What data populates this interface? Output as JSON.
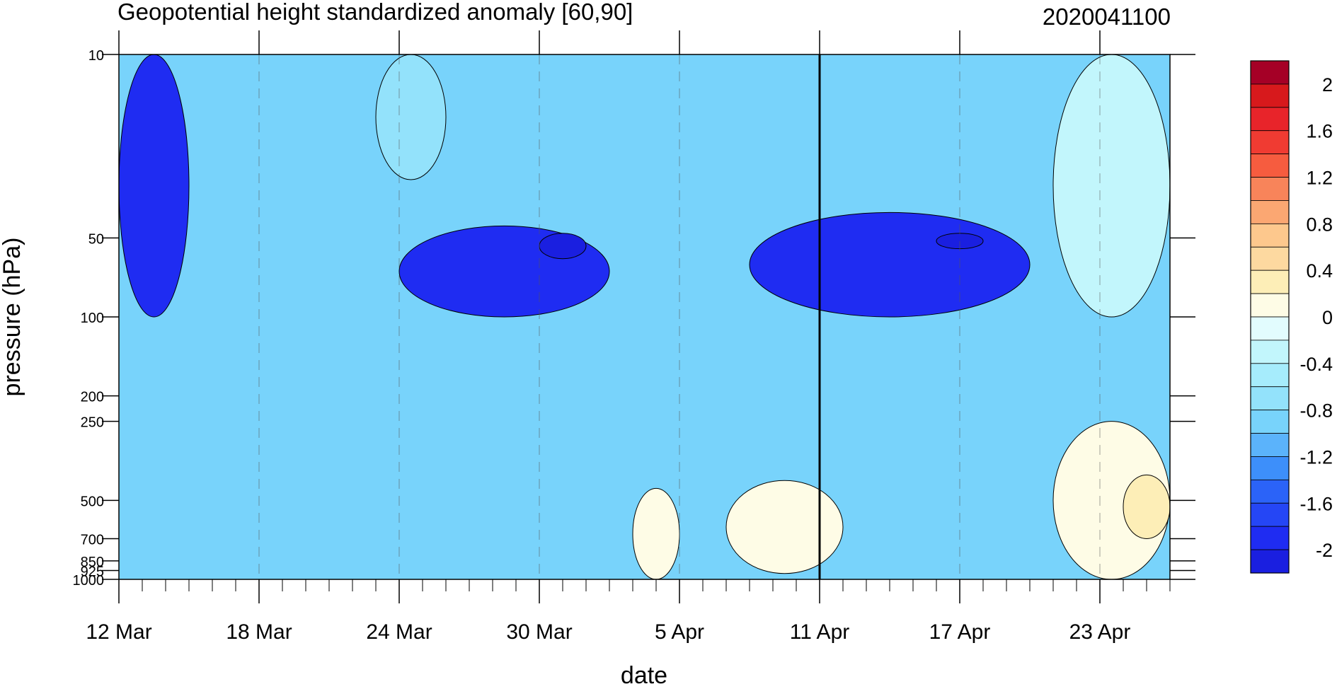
{
  "chart_data": {
    "type": "heatmap",
    "title": "Geopotential height standardized anomaly [60,90]",
    "subtitle": "2020041100",
    "xlabel": "date",
    "ylabel": "pressure (hPa)",
    "x_ticks": [
      "12 Mar",
      "18 Mar",
      "24 Mar",
      "30 Mar",
      "5 Apr",
      "11 Apr",
      "17 Apr",
      "23 Apr"
    ],
    "x_tick_dates": [
      "2020-03-12",
      "2020-03-18",
      "2020-03-24",
      "2020-03-30",
      "2020-04-05",
      "2020-04-11",
      "2020-04-17",
      "2020-04-23"
    ],
    "x_range": [
      "2020-03-12",
      "2020-04-26"
    ],
    "forecast_line_date": "2020-04-11",
    "y_ticks": [
      10,
      50,
      100,
      200,
      250,
      500,
      700,
      850,
      925,
      1000
    ],
    "y_scale": "log",
    "y_reversed": true,
    "y_range": [
      1000,
      10
    ],
    "grid": "dashed vertical lines at x ticks",
    "colorbar": {
      "labels": [
        "2",
        "1.6",
        "1.2",
        "0.8",
        "0.4",
        "0",
        "-0.4",
        "-0.8",
        "-1.2",
        "-1.6",
        "-2"
      ],
      "levels": [
        2.2,
        2.0,
        1.8,
        1.6,
        1.4,
        1.2,
        1.0,
        0.8,
        0.6,
        0.4,
        0.2,
        0.0,
        -0.2,
        -0.4,
        -0.6,
        -0.8,
        -1.0,
        -1.2,
        -1.4,
        -1.6,
        -1.8,
        -2.0,
        -2.2
      ],
      "colors": [
        "#a50026",
        "#d7191c",
        "#e8242a",
        "#f03b32",
        "#f65c3f",
        "#f8845a",
        "#fba772",
        "#fdc88d",
        "#fdd9a0",
        "#fdeeb7",
        "#fefce6",
        "#e2fcfe",
        "#c2f6fc",
        "#a6ecfc",
        "#93e2fb",
        "#78d3fb",
        "#5bb3fb",
        "#3d8ffa",
        "#2b63f8",
        "#2546f5",
        "#1f2cf2",
        "#1a1fe0"
      ]
    },
    "regions": [
      {
        "value": -0.2,
        "bounds": [
          [
            "2020-04-21",
            10
          ],
          [
            "2020-04-26",
            100
          ]
        ]
      },
      {
        "value": 0.2,
        "bounds": [
          [
            "2020-04-21",
            250
          ],
          [
            "2020-04-26",
            1000
          ]
        ]
      },
      {
        "value": 0.4,
        "bounds": [
          [
            "2020-04-24",
            400
          ],
          [
            "2020-04-26",
            700
          ]
        ]
      },
      {
        "value": 0.2,
        "bounds": [
          [
            "2020-04-03",
            450
          ],
          [
            "2020-04-05",
            1000
          ]
        ]
      },
      {
        "value": 0.2,
        "bounds": [
          [
            "2020-04-07",
            420
          ],
          [
            "2020-04-12",
            950
          ]
        ]
      },
      {
        "value": -1.8,
        "bounds": [
          [
            "2020-03-12",
            10
          ],
          [
            "2020-03-15",
            100
          ]
        ]
      },
      {
        "value": -1.8,
        "bounds": [
          [
            "2020-03-24",
            45
          ],
          [
            "2020-04-02",
            100
          ]
        ]
      },
      {
        "value": -1.8,
        "bounds": [
          [
            "2020-04-08",
            40
          ],
          [
            "2020-04-20",
            100
          ]
        ]
      },
      {
        "value": -2.0,
        "bounds": [
          [
            "2020-03-30",
            48
          ],
          [
            "2020-04-01",
            60
          ]
        ]
      },
      {
        "value": -2.0,
        "bounds": [
          [
            "2020-04-16",
            48
          ],
          [
            "2020-04-18",
            55
          ]
        ]
      },
      {
        "value": -0.6,
        "bounds": [
          [
            "2020-03-23",
            10
          ],
          [
            "2020-03-26",
            30
          ]
        ]
      }
    ]
  }
}
